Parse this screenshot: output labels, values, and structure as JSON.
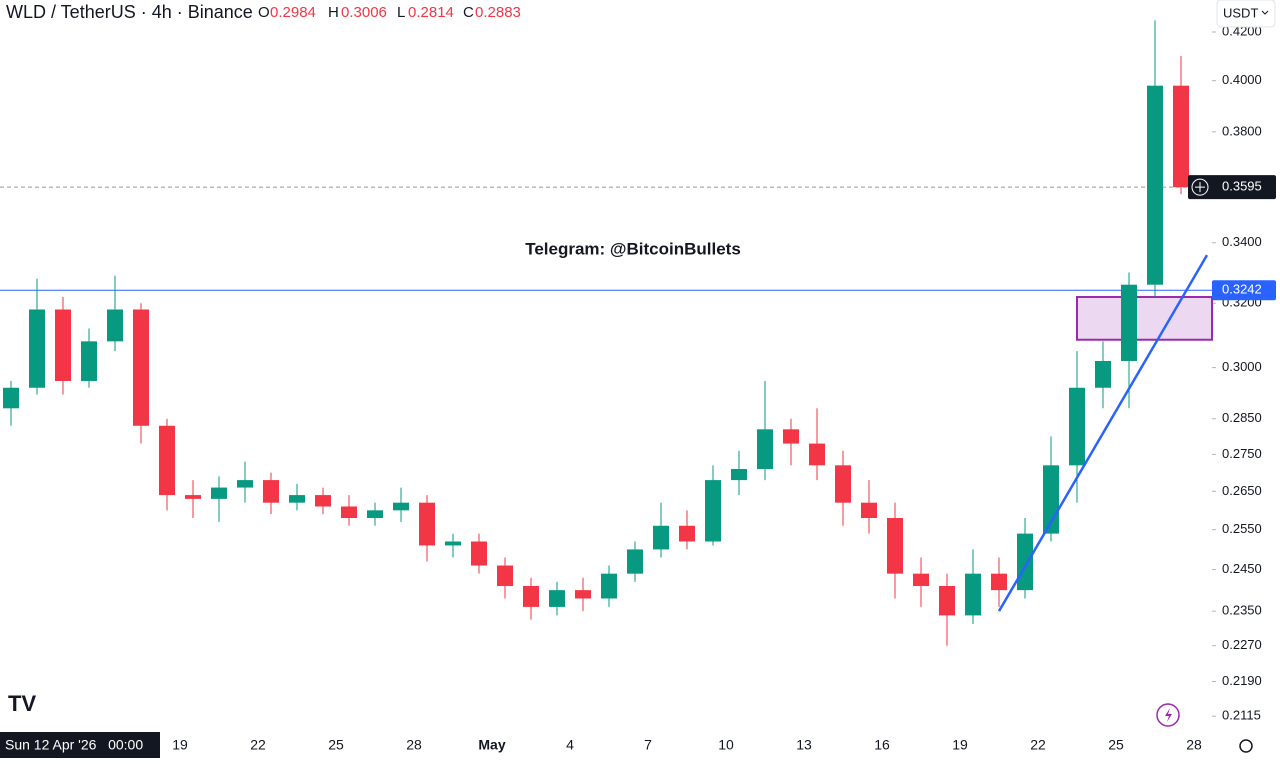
{
  "header": {
    "symbol": "WLD / TetherUS · 4h · Binance",
    "o_label": "O",
    "o": "0.2984",
    "h_label": "H",
    "h": "0.3006",
    "l_label": "L",
    "l": "0.2814",
    "c_label": "C",
    "c": "0.2883",
    "currency": "USDT"
  },
  "chart_data": {
    "type": "candlestick",
    "annotation": "Telegram: @BitcoinBullets",
    "crosshair_label": "Sun 12 Apr '26   00:00",
    "categories": [
      null,
      null,
      null,
      null,
      null,
      null,
      null,
      "19",
      null,
      null,
      "22",
      null,
      null,
      "25",
      null,
      null,
      "28",
      null,
      null,
      "May",
      null,
      null,
      "4",
      null,
      null,
      "7",
      null,
      null,
      "10",
      null,
      null,
      "13",
      null,
      null,
      "16",
      null,
      null,
      "19",
      null,
      null,
      "22",
      null,
      null,
      "25",
      null,
      null,
      "28"
    ],
    "open": [
      0.288,
      0.294,
      0.318,
      0.296,
      0.308,
      0.318,
      0.283,
      0.264,
      0.263,
      0.266,
      0.268,
      0.262,
      0.264,
      0.261,
      0.258,
      0.26,
      0.262,
      0.251,
      0.252,
      0.246,
      0.241,
      0.236,
      0.24,
      0.238,
      0.244,
      0.25,
      0.256,
      0.252,
      0.268,
      0.271,
      0.282,
      0.278,
      0.272,
      0.262,
      0.258,
      0.244,
      0.241,
      0.234,
      0.244,
      0.24,
      0.254,
      0.272,
      0.294,
      0.302,
      0.326,
      0.398,
      null
    ],
    "high": [
      0.296,
      0.328,
      0.322,
      0.312,
      0.329,
      0.32,
      0.285,
      0.268,
      0.269,
      0.273,
      0.27,
      0.267,
      0.266,
      0.264,
      0.262,
      0.266,
      0.264,
      0.254,
      0.254,
      0.248,
      0.243,
      0.242,
      0.243,
      0.246,
      0.252,
      0.262,
      0.26,
      0.272,
      0.276,
      0.296,
      0.285,
      0.288,
      0.276,
      0.268,
      0.262,
      0.248,
      0.244,
      0.25,
      0.248,
      0.258,
      0.28,
      0.305,
      0.308,
      0.33,
      0.425,
      0.41,
      null
    ],
    "low": [
      0.283,
      0.292,
      0.292,
      0.294,
      0.305,
      0.278,
      0.26,
      0.258,
      0.257,
      0.262,
      0.259,
      0.26,
      0.259,
      0.256,
      0.256,
      0.257,
      0.247,
      0.248,
      0.244,
      0.238,
      0.233,
      0.234,
      0.235,
      0.236,
      0.242,
      0.248,
      0.25,
      0.251,
      0.264,
      0.268,
      0.272,
      0.268,
      0.256,
      0.254,
      0.238,
      0.236,
      0.227,
      0.232,
      0.236,
      0.238,
      0.252,
      0.262,
      0.288,
      0.288,
      0.322,
      0.357,
      null
    ],
    "close": [
      0.294,
      0.318,
      0.296,
      0.308,
      0.318,
      0.283,
      0.264,
      0.263,
      0.266,
      0.268,
      0.262,
      0.264,
      0.261,
      0.258,
      0.26,
      0.262,
      0.251,
      0.252,
      0.246,
      0.241,
      0.236,
      0.24,
      0.238,
      0.244,
      0.25,
      0.256,
      0.252,
      0.268,
      0.271,
      0.282,
      0.278,
      0.272,
      0.262,
      0.258,
      0.244,
      0.241,
      0.234,
      0.244,
      0.24,
      0.254,
      0.272,
      0.294,
      0.302,
      0.326,
      0.398,
      0.3595,
      null
    ],
    "up_color": "#089981",
    "down_color": "#f23645",
    "log_scale": true,
    "ylim": [
      0.2086,
      0.4337
    ],
    "yticks": [
      {
        "value": 0.42,
        "label": "0.4200"
      },
      {
        "value": 0.4,
        "label": "0.4000"
      },
      {
        "value": 0.38,
        "label": "0.3800"
      },
      {
        "value": 0.34,
        "label": "0.3400"
      },
      {
        "value": 0.32,
        "label": "0.3200"
      },
      {
        "value": 0.3,
        "label": "0.3000"
      },
      {
        "value": 0.285,
        "label": "0.2850"
      },
      {
        "value": 0.275,
        "label": "0.2750"
      },
      {
        "value": 0.265,
        "label": "0.2650"
      },
      {
        "value": 0.255,
        "label": "0.2550"
      },
      {
        "value": 0.245,
        "label": "0.2450"
      },
      {
        "value": 0.235,
        "label": "0.2350"
      },
      {
        "value": 0.227,
        "label": "0.2270"
      },
      {
        "value": 0.219,
        "label": "0.2190"
      },
      {
        "value": 0.2115,
        "label": "0.2115"
      }
    ],
    "last_price": {
      "value": 0.3595,
      "label": "0.3595"
    },
    "level": {
      "value": 0.3242,
      "label": "0.3242",
      "color": "#2962ff"
    },
    "zone": {
      "x0": 41.5,
      "low": 0.3085,
      "high": 0.322,
      "color": "#9c27b0"
    },
    "trendline": {
      "x": [
        38.5,
        46.5
      ],
      "y": [
        0.235,
        0.3358
      ],
      "color": "#2962ff"
    }
  }
}
